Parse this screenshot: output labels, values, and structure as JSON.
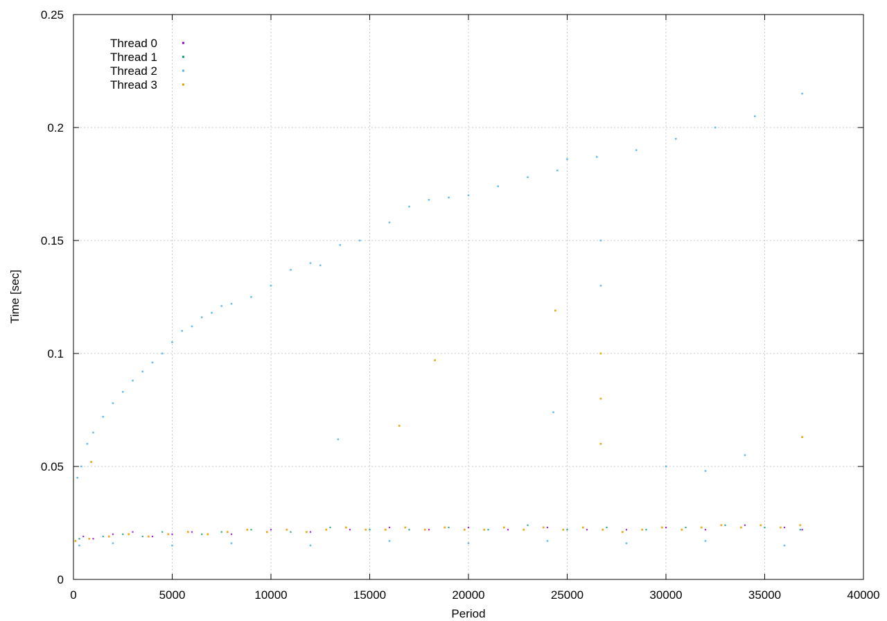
{
  "chart_data": {
    "type": "scatter",
    "title": "",
    "xlabel": "Period",
    "ylabel": "Time [sec]",
    "xlim": [
      0,
      40000
    ],
    "ylim": [
      0,
      0.25
    ],
    "x_ticks": [
      0,
      5000,
      10000,
      15000,
      20000,
      25000,
      30000,
      35000,
      40000
    ],
    "x_tick_labels": [
      "0",
      "5000",
      "10000",
      "15000",
      "20000",
      "25000",
      "30000",
      "35000",
      "40000"
    ],
    "y_ticks": [
      0,
      0.05,
      0.1,
      0.15,
      0.2,
      0.25
    ],
    "y_tick_labels": [
      "0",
      "0.05",
      "0.1",
      "0.15",
      "0.2",
      "0.25"
    ],
    "grid": true,
    "legend_position": "top-left",
    "series": [
      {
        "name": "Thread 0",
        "color": "#9400d3",
        "points": [
          [
            500,
            0.019
          ],
          [
            1000,
            0.018
          ],
          [
            2000,
            0.02
          ],
          [
            3000,
            0.021
          ],
          [
            4000,
            0.019
          ],
          [
            5000,
            0.02
          ],
          [
            6000,
            0.021
          ],
          [
            8000,
            0.02
          ],
          [
            10000,
            0.022
          ],
          [
            12000,
            0.021
          ],
          [
            14000,
            0.022
          ],
          [
            16000,
            0.023
          ],
          [
            18000,
            0.022
          ],
          [
            20000,
            0.023
          ],
          [
            22000,
            0.022
          ],
          [
            24000,
            0.023
          ],
          [
            26000,
            0.022
          ],
          [
            28000,
            0.022
          ],
          [
            30000,
            0.023
          ],
          [
            32000,
            0.022
          ],
          [
            34000,
            0.024
          ],
          [
            36000,
            0.023
          ],
          [
            36900,
            0.022
          ]
        ]
      },
      {
        "name": "Thread 1",
        "color": "#009e73",
        "points": [
          [
            300,
            0.018
          ],
          [
            1500,
            0.019
          ],
          [
            2500,
            0.02
          ],
          [
            3500,
            0.019
          ],
          [
            4500,
            0.021
          ],
          [
            6500,
            0.02
          ],
          [
            7500,
            0.021
          ],
          [
            9000,
            0.022
          ],
          [
            11000,
            0.021
          ],
          [
            13000,
            0.023
          ],
          [
            15000,
            0.022
          ],
          [
            17000,
            0.022
          ],
          [
            19000,
            0.023
          ],
          [
            21000,
            0.022
          ],
          [
            23000,
            0.024
          ],
          [
            25000,
            0.022
          ],
          [
            27000,
            0.023
          ],
          [
            29000,
            0.022
          ],
          [
            31000,
            0.023
          ],
          [
            33000,
            0.024
          ],
          [
            35000,
            0.023
          ],
          [
            36800,
            0.022
          ]
        ]
      },
      {
        "name": "Thread 2",
        "color": "#56b4e9",
        "points": [
          [
            200,
            0.045
          ],
          [
            400,
            0.05
          ],
          [
            700,
            0.06
          ],
          [
            1000,
            0.065
          ],
          [
            1500,
            0.072
          ],
          [
            2000,
            0.078
          ],
          [
            2500,
            0.083
          ],
          [
            3000,
            0.088
          ],
          [
            3500,
            0.092
          ],
          [
            4000,
            0.096
          ],
          [
            4500,
            0.1
          ],
          [
            5000,
            0.105
          ],
          [
            5500,
            0.11
          ],
          [
            6000,
            0.112
          ],
          [
            6500,
            0.116
          ],
          [
            7000,
            0.118
          ],
          [
            7500,
            0.121
          ],
          [
            8000,
            0.122
          ],
          [
            9000,
            0.125
          ],
          [
            10000,
            0.13
          ],
          [
            11000,
            0.137
          ],
          [
            12000,
            0.14
          ],
          [
            12500,
            0.139
          ],
          [
            13500,
            0.148
          ],
          [
            14500,
            0.15
          ],
          [
            16000,
            0.158
          ],
          [
            17000,
            0.165
          ],
          [
            18000,
            0.168
          ],
          [
            19000,
            0.169
          ],
          [
            20000,
            0.17
          ],
          [
            21500,
            0.174
          ],
          [
            23000,
            0.178
          ],
          [
            24500,
            0.181
          ],
          [
            25000,
            0.186
          ],
          [
            26500,
            0.187
          ],
          [
            28500,
            0.19
          ],
          [
            30500,
            0.195
          ],
          [
            32500,
            0.2
          ],
          [
            34500,
            0.205
          ],
          [
            36900,
            0.215
          ],
          [
            13400,
            0.062
          ],
          [
            24300,
            0.074
          ],
          [
            26700,
            0.13
          ],
          [
            26700,
            0.15
          ],
          [
            30000,
            0.05
          ],
          [
            32000,
            0.048
          ],
          [
            34000,
            0.055
          ],
          [
            300,
            0.015
          ],
          [
            2000,
            0.016
          ],
          [
            5000,
            0.015
          ],
          [
            8000,
            0.016
          ],
          [
            12000,
            0.015
          ],
          [
            16000,
            0.017
          ],
          [
            20000,
            0.016
          ],
          [
            24000,
            0.017
          ],
          [
            28000,
            0.016
          ],
          [
            32000,
            0.017
          ],
          [
            36000,
            0.015
          ]
        ]
      },
      {
        "name": "Thread 3",
        "color": "#e69f00",
        "points": [
          [
            100,
            0.017
          ],
          [
            800,
            0.018
          ],
          [
            1800,
            0.019
          ],
          [
            2800,
            0.02
          ],
          [
            3800,
            0.019
          ],
          [
            4800,
            0.02
          ],
          [
            5800,
            0.021
          ],
          [
            6800,
            0.02
          ],
          [
            7800,
            0.021
          ],
          [
            8800,
            0.022
          ],
          [
            9800,
            0.021
          ],
          [
            10800,
            0.022
          ],
          [
            11800,
            0.021
          ],
          [
            12800,
            0.022
          ],
          [
            13800,
            0.023
          ],
          [
            14800,
            0.022
          ],
          [
            15800,
            0.022
          ],
          [
            16800,
            0.023
          ],
          [
            17800,
            0.022
          ],
          [
            18800,
            0.023
          ],
          [
            19800,
            0.022
          ],
          [
            20800,
            0.022
          ],
          [
            21800,
            0.023
          ],
          [
            22800,
            0.022
          ],
          [
            23800,
            0.023
          ],
          [
            24800,
            0.022
          ],
          [
            25800,
            0.023
          ],
          [
            26700,
            0.06
          ],
          [
            26700,
            0.08
          ],
          [
            26700,
            0.1
          ],
          [
            26800,
            0.022
          ],
          [
            27800,
            0.021
          ],
          [
            28800,
            0.022
          ],
          [
            29800,
            0.023
          ],
          [
            30800,
            0.022
          ],
          [
            31800,
            0.023
          ],
          [
            32800,
            0.024
          ],
          [
            33800,
            0.023
          ],
          [
            34800,
            0.024
          ],
          [
            35800,
            0.023
          ],
          [
            36800,
            0.024
          ],
          [
            24400,
            0.119
          ],
          [
            18300,
            0.097
          ],
          [
            36900,
            0.063
          ],
          [
            16500,
            0.068
          ],
          [
            900,
            0.052
          ]
        ]
      }
    ]
  }
}
